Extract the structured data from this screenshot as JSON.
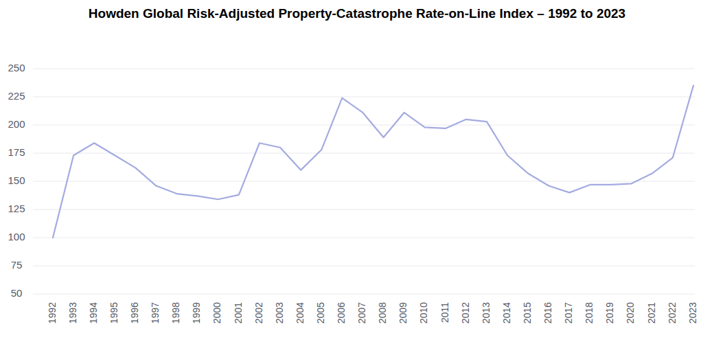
{
  "chart_data": {
    "type": "line",
    "title": "Howden Global Risk-Adjusted Property-Catastrophe Rate-on-Line Index – 1992 to 2023",
    "categories": [
      "1992",
      "1993",
      "1994",
      "1995",
      "1996",
      "1997",
      "1998",
      "1999",
      "2000",
      "2001",
      "2002",
      "2003",
      "2004",
      "2005",
      "2006",
      "2007",
      "2008",
      "2009",
      "2010",
      "2011",
      "2012",
      "2013",
      "2014",
      "2015",
      "2016",
      "2017",
      "2018",
      "2019",
      "2020",
      "2021",
      "2022",
      "2023"
    ],
    "values": [
      100,
      173,
      184,
      173,
      162,
      146,
      139,
      137,
      134,
      138,
      184,
      180,
      160,
      178,
      224,
      211,
      189,
      211,
      198,
      197,
      205,
      203,
      173,
      157,
      146,
      140,
      147,
      147,
      148,
      157,
      171,
      235
    ],
    "color": "#a3abe0",
    "ylim": [
      50,
      250
    ],
    "yticks": [
      50,
      75,
      100,
      125,
      150,
      175,
      200,
      225,
      250
    ],
    "grid": true
  }
}
